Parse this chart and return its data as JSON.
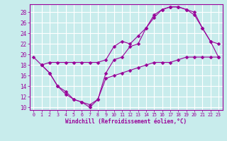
{
  "bg_color": "#c8ecec",
  "line_color": "#990099",
  "grid_color": "#ffffff",
  "xlabel": "Windchill (Refroidissement éolien,°C)",
  "xlim": [
    -0.5,
    23.5
  ],
  "ylim": [
    9.5,
    29.5
  ],
  "yticks": [
    10,
    12,
    14,
    16,
    18,
    20,
    22,
    24,
    26,
    28
  ],
  "xticks": [
    0,
    1,
    2,
    3,
    4,
    5,
    6,
    7,
    8,
    9,
    10,
    11,
    12,
    13,
    14,
    15,
    16,
    17,
    18,
    19,
    20,
    21,
    22,
    23
  ],
  "series1_x": [
    0,
    1,
    2,
    3,
    4,
    5,
    6,
    7,
    8,
    9,
    10,
    11,
    12,
    13,
    14,
    15,
    16,
    17,
    18,
    19,
    20,
    21,
    22,
    23
  ],
  "series1_y": [
    19.5,
    18.0,
    16.5,
    14.0,
    13.0,
    11.5,
    11.0,
    10.0,
    11.5,
    16.5,
    19.0,
    19.5,
    21.5,
    22.0,
    25.0,
    27.5,
    28.5,
    29.0,
    29.0,
    28.5,
    27.5,
    25.0,
    22.5,
    22.0
  ],
  "series2_x": [
    1,
    2,
    3,
    4,
    5,
    6,
    7,
    8,
    9,
    10,
    11,
    12,
    13,
    14,
    15,
    16,
    17,
    18,
    19,
    20,
    21,
    22,
    23
  ],
  "series2_y": [
    18.0,
    18.5,
    18.5,
    18.5,
    18.5,
    18.5,
    18.5,
    18.5,
    19.0,
    21.5,
    22.5,
    22.0,
    23.5,
    25.0,
    27.0,
    28.5,
    29.0,
    29.0,
    28.5,
    28.0,
    25.0,
    22.5,
    19.5
  ],
  "series3_x": [
    1,
    2,
    3,
    4,
    5,
    6,
    7,
    8,
    9,
    10,
    11,
    12,
    13,
    14,
    15,
    16,
    17,
    18,
    19,
    20,
    21,
    22,
    23
  ],
  "series3_y": [
    18.0,
    16.5,
    14.0,
    12.5,
    11.5,
    11.0,
    10.5,
    11.5,
    15.5,
    16.0,
    16.5,
    17.0,
    17.5,
    18.0,
    18.5,
    18.5,
    18.5,
    19.0,
    19.5,
    19.5,
    19.5,
    19.5,
    19.5
  ]
}
